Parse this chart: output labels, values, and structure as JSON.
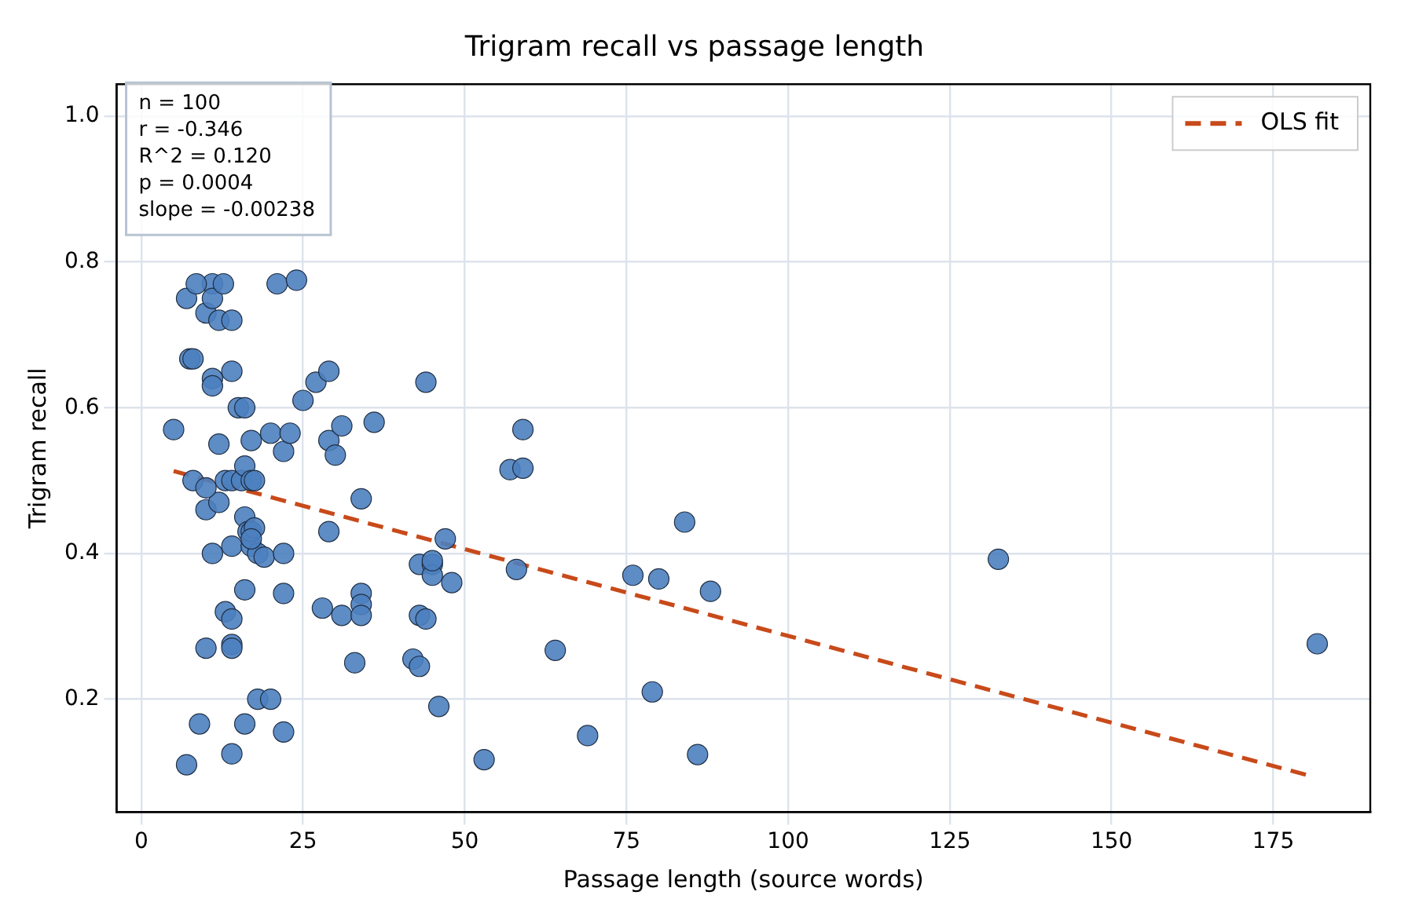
{
  "chart_data": {
    "type": "scatter",
    "title": "Trigram recall vs passage length",
    "xlabel": "Passage length (source words)",
    "ylabel": "Trigram recall",
    "xlim": [
      -3.8,
      190
    ],
    "xticks": [
      0,
      25,
      50,
      75,
      100,
      125,
      150,
      175
    ],
    "ylim": [
      0.045,
      1.044
    ],
    "yticks": [
      {
        "value": 0.2,
        "label": "0.2"
      },
      {
        "value": 0.4,
        "label": "0.4"
      },
      {
        "value": 0.6,
        "label": "0.6"
      },
      {
        "value": 0.8,
        "label": "0.8"
      },
      {
        "value": 1,
        "label": "1.0"
      }
    ],
    "grid": true,
    "legend": "top right",
    "marker": "circle",
    "annotations": [
      "n = 100",
      "r = -0.346",
      "R^2 = 0.120",
      "p = 0.0004",
      "slope = -0.00238"
    ],
    "series": [
      {
        "type": "scatter",
        "color": "#4c7fbf",
        "x": [
          5,
          7,
          7.5,
          8,
          7,
          8,
          9,
          10,
          10,
          10,
          11,
          11,
          11,
          11,
          11,
          12,
          12,
          12,
          13,
          13,
          14,
          14,
          14,
          14,
          14,
          14,
          14,
          14,
          15,
          15.5,
          16,
          16,
          16,
          16.5,
          16,
          16,
          17,
          17,
          17,
          17,
          17.5,
          18,
          18,
          19,
          20,
          20,
          21,
          22,
          22,
          22,
          22,
          23,
          25,
          27,
          28,
          29,
          29,
          29,
          30,
          31,
          31,
          33,
          34,
          34,
          34,
          34,
          36,
          43,
          43,
          42,
          43,
          44,
          44,
          45,
          45,
          45,
          46,
          47,
          48,
          53,
          57,
          58,
          59,
          59,
          64,
          69,
          76,
          80,
          79,
          84,
          86,
          88,
          132.5,
          181.8,
          8.5,
          12.7,
          24,
          17.5,
          17,
          10
        ],
        "values": [
          0.57,
          0.75,
          0.667,
          0.667,
          0.11,
          0.5,
          0.166,
          0.73,
          0.46,
          0.27,
          0.77,
          0.75,
          0.64,
          0.63,
          0.4,
          0.55,
          0.72,
          0.47,
          0.5,
          0.32,
          0.72,
          0.65,
          0.5,
          0.41,
          0.31,
          0.275,
          0.27,
          0.125,
          0.6,
          0.5,
          0.6,
          0.52,
          0.45,
          0.43,
          0.35,
          0.166,
          0.5,
          0.555,
          0.41,
          0.43,
          0.435,
          0.4,
          0.2,
          0.395,
          0.565,
          0.2,
          0.77,
          0.54,
          0.4,
          0.345,
          0.155,
          0.565,
          0.61,
          0.635,
          0.325,
          0.65,
          0.555,
          0.43,
          0.535,
          0.575,
          0.315,
          0.25,
          0.475,
          0.345,
          0.33,
          0.315,
          0.58,
          0.385,
          0.315,
          0.255,
          0.245,
          0.635,
          0.31,
          0.385,
          0.37,
          0.39,
          0.19,
          0.42,
          0.36,
          0.117,
          0.515,
          0.378,
          0.57,
          0.517,
          0.267,
          0.15,
          0.37,
          0.365,
          0.21,
          0.443,
          0.124,
          0.348,
          0.392,
          0.276,
          0.77,
          0.77,
          0.775,
          0.5,
          0.42,
          0.49
        ]
      },
      {
        "type": "line",
        "name": "OLS fit",
        "color": "#c84a1a",
        "line_style": "dashed",
        "marker": "none",
        "x": [
          5,
          181
        ],
        "values": [
          0.513,
          0.094
        ]
      }
    ]
  }
}
